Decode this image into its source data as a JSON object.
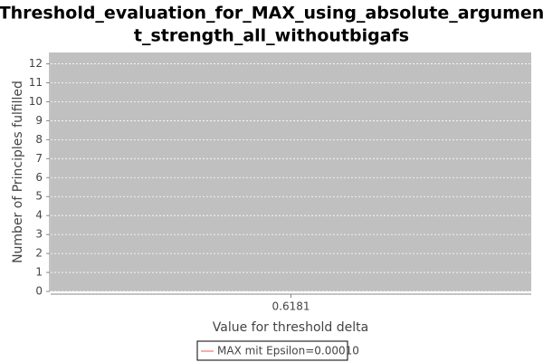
{
  "chart_data": {
    "type": "line",
    "title": [
      "Threshold_evaluation_for_MAX_using_absolute_argumen",
      "t_strength_all_withoutbigafs"
    ],
    "x_label": "Value for threshold delta",
    "y_label": "Number of Principles fulfilled",
    "categories": [
      "0.6181"
    ],
    "series": [
      {
        "name": "MAX mit Epsilon=0.00010",
        "color": "#ff5555",
        "values": [
          null
        ]
      }
    ],
    "ylim": [
      0,
      12.6
    ],
    "yticks": [
      0,
      1,
      2,
      3,
      4,
      5,
      6,
      7,
      8,
      9,
      10,
      11,
      12
    ],
    "grid": true,
    "legend": "bottom"
  }
}
